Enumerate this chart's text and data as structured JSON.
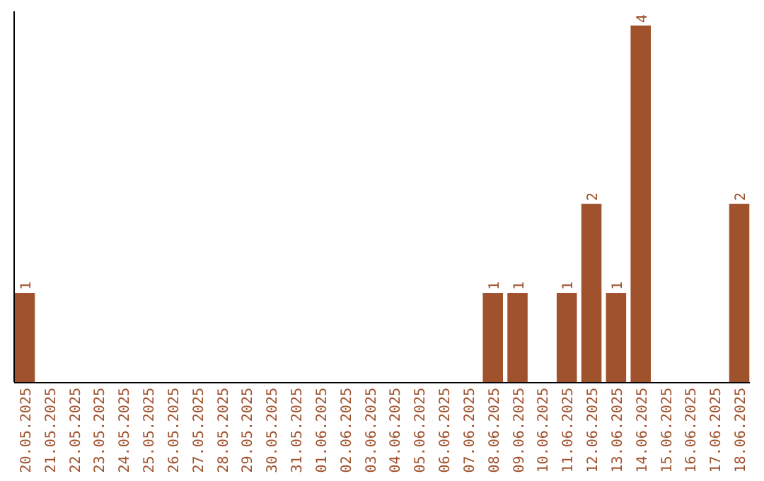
{
  "chart_data": {
    "type": "bar",
    "categories": [
      "20.05.2025",
      "21.05.2025",
      "22.05.2025",
      "23.05.2025",
      "24.05.2025",
      "25.05.2025",
      "26.05.2025",
      "27.05.2025",
      "28.05.2025",
      "29.05.2025",
      "30.05.2025",
      "31.05.2025",
      "01.06.2025",
      "02.06.2025",
      "03.06.2025",
      "04.06.2025",
      "05.06.2025",
      "06.06.2025",
      "07.06.2025",
      "08.06.2025",
      "09.06.2025",
      "10.06.2025",
      "11.06.2025",
      "12.06.2025",
      "13.06.2025",
      "14.06.2025",
      "15.06.2025",
      "16.06.2025",
      "17.06.2025",
      "18.06.2025"
    ],
    "values": [
      1,
      0,
      0,
      0,
      0,
      0,
      0,
      0,
      0,
      0,
      0,
      0,
      0,
      0,
      0,
      0,
      0,
      0,
      0,
      1,
      1,
      0,
      1,
      2,
      1,
      4,
      0,
      0,
      0,
      2
    ],
    "value_labels": [
      "1",
      null,
      null,
      null,
      null,
      null,
      null,
      null,
      null,
      null,
      null,
      null,
      null,
      null,
      null,
      null,
      null,
      null,
      null,
      "1",
      "1",
      null,
      "1",
      "2",
      "1",
      "4",
      null,
      null,
      null,
      "2"
    ],
    "color": "#a0522d"
  }
}
